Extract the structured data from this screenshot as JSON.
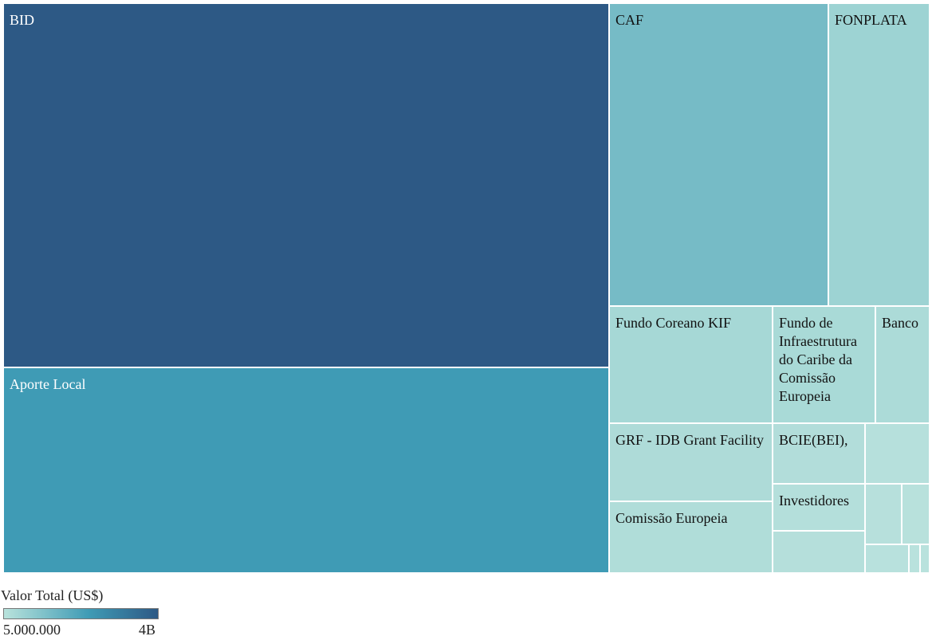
{
  "chart_data": {
    "type": "treemap",
    "measure": "Valor Total (US$)",
    "color_scale": {
      "min_label": "5.000.000",
      "max_label": "4B",
      "min_color": "#b9e3dc",
      "mid_color": "#3f9bb5",
      "max_color": "#2d5985"
    },
    "tiles": [
      {
        "label": "BID",
        "color": "#2d5985"
      },
      {
        "label": "Aporte Local",
        "color": "#3f9bb5"
      },
      {
        "label": "CAF",
        "color": "#76bbc6"
      },
      {
        "label": "FONPLATA",
        "color": "#9dd3d3"
      },
      {
        "label": "Fundo Coreano KIF",
        "color": "#a6d8d6"
      },
      {
        "label": "Fundo de Infraestrutura do Caribe da Comissão Europeia",
        "color": "#a9dad7"
      },
      {
        "label": "Banco",
        "color": "#acdbd8"
      },
      {
        "label": "GRF - IDB Grant Facility",
        "color": "#aedbd8"
      },
      {
        "label": "Comissão Europeia",
        "color": "#b0ddd9"
      },
      {
        "label": "BCIE(BEI),",
        "color": "#b2ddda"
      },
      {
        "label": "Investidores",
        "color": "#b4dfdb"
      },
      {
        "label": "",
        "color": "#b5dfdb"
      },
      {
        "label": "",
        "color": "#b6e0dc"
      },
      {
        "label": "",
        "color": "#b7e0dc"
      },
      {
        "label": "",
        "color": "#b8e1dc"
      },
      {
        "label": "",
        "color": "#b8e1dd"
      },
      {
        "label": "",
        "color": "#b9e2dd"
      },
      {
        "label": "",
        "color": "#b9e2dd"
      }
    ]
  },
  "legend": {
    "title": "Valor Total (US$)",
    "min": "5.000.000",
    "max": "4B"
  }
}
